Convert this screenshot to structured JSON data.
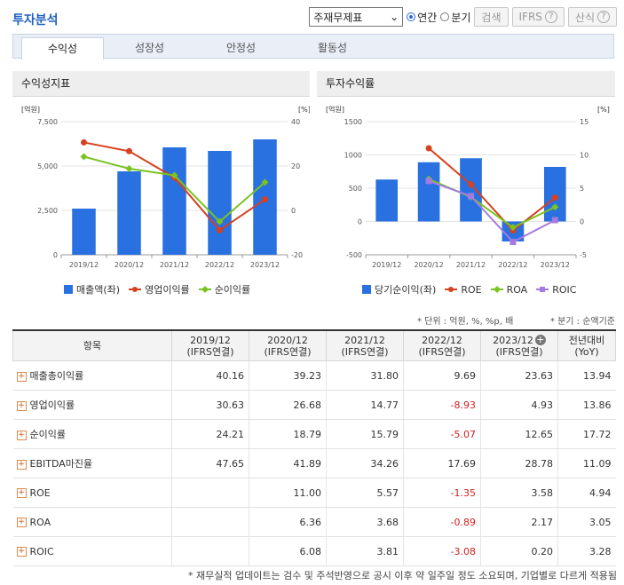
{
  "title": "투자분석",
  "controls": {
    "select_value": "주재무제표",
    "radio_annual": "연간",
    "radio_quarter": "분기",
    "search_button": "검색",
    "ifrs_button": "IFRS",
    "formula_button": "산식"
  },
  "tabs": [
    "수익성",
    "성장성",
    "안정성",
    "활동성"
  ],
  "active_tab": "수익성",
  "left_panel": {
    "title": "수익성지표",
    "unit_left": "[억원]",
    "unit_right": "[%]",
    "y_left_ticks": [
      "7,500",
      "5,000",
      "2,500",
      "0"
    ],
    "y_right_ticks": [
      "40",
      "20",
      "0",
      "-20"
    ],
    "legend": [
      "매출액(좌)",
      "영업이익률",
      "순이익률"
    ]
  },
  "right_panel": {
    "title": "투자수익률",
    "unit_left": "[억원]",
    "unit_right": "[%]",
    "y_left_ticks": [
      "1500",
      "1000",
      "500",
      "0",
      "-500"
    ],
    "y_right_ticks": [
      "15",
      "10",
      "5",
      "0",
      "-5"
    ],
    "legend": [
      "당기순이익(좌)",
      "ROE",
      "ROA",
      "ROIC"
    ]
  },
  "chart_data": [
    {
      "type": "bar",
      "title": "수익성지표",
      "categories": [
        "2019/12",
        "2020/12",
        "2021/12",
        "2022/12",
        "2023/12"
      ],
      "ylim_left": [
        0,
        7500
      ],
      "ylim_right": [
        -20,
        40
      ],
      "series": [
        {
          "name": "매출액(좌)",
          "axis": "left",
          "kind": "bar",
          "color": "#2970e0",
          "values": [
            2600,
            4700,
            6050,
            5850,
            6500
          ]
        },
        {
          "name": "영업이익률",
          "axis": "right",
          "kind": "line",
          "color": "#d6411f",
          "values": [
            30.63,
            26.68,
            14.77,
            -8.93,
            4.93
          ]
        },
        {
          "name": "순이익률",
          "axis": "right",
          "kind": "line",
          "color": "#7ac321",
          "values": [
            24.21,
            18.79,
            15.79,
            -5.07,
            12.65
          ]
        }
      ]
    },
    {
      "type": "bar",
      "title": "투자수익률",
      "categories": [
        "2019/12",
        "2020/12",
        "2021/12",
        "2022/12",
        "2023/12"
      ],
      "ylim_left": [
        -500,
        1500
      ],
      "ylim_right": [
        -5,
        15
      ],
      "series": [
        {
          "name": "당기순이익(좌)",
          "axis": "left",
          "kind": "bar",
          "color": "#2970e0",
          "values": [
            630,
            890,
            950,
            -300,
            820
          ]
        },
        {
          "name": "ROE",
          "axis": "right",
          "kind": "line",
          "color": "#d6411f",
          "values": [
            null,
            11.0,
            5.57,
            -1.35,
            3.58
          ]
        },
        {
          "name": "ROA",
          "axis": "right",
          "kind": "line",
          "color": "#7ac321",
          "values": [
            null,
            6.36,
            3.68,
            -0.89,
            2.17
          ]
        },
        {
          "name": "ROIC",
          "axis": "right",
          "kind": "line",
          "color": "#a57be0",
          "values": [
            null,
            6.08,
            3.81,
            -3.08,
            0.2
          ]
        }
      ]
    }
  ],
  "notes": {
    "units": "* 단위 : 억원, %, %p, 배",
    "quarter": "* 분기 : 순액기준"
  },
  "table": {
    "header_item": "항목",
    "columns": [
      {
        "year": "2019/12",
        "basis": "(IFRS연결)"
      },
      {
        "year": "2020/12",
        "basis": "(IFRS연결)"
      },
      {
        "year": "2021/12",
        "basis": "(IFRS연결)"
      },
      {
        "year": "2022/12",
        "basis": "(IFRS연결)"
      },
      {
        "year": "2023/12",
        "basis": "(IFRS연결)"
      },
      {
        "year": "전년대비",
        "basis": "(YoY)"
      }
    ],
    "rows": [
      {
        "name": "매출총이익률",
        "values": [
          "40.16",
          "39.23",
          "31.80",
          "9.69",
          "23.63",
          "13.94"
        ]
      },
      {
        "name": "영업이익률",
        "values": [
          "30.63",
          "26.68",
          "14.77",
          "-8.93",
          "4.93",
          "13.86"
        ]
      },
      {
        "name": "순이익률",
        "values": [
          "24.21",
          "18.79",
          "15.79",
          "-5.07",
          "12.65",
          "17.72"
        ]
      },
      {
        "name": "EBITDA마진율",
        "values": [
          "47.65",
          "41.89",
          "34.26",
          "17.69",
          "28.78",
          "11.09"
        ]
      },
      {
        "name": "ROE",
        "values": [
          "",
          "11.00",
          "5.57",
          "-1.35",
          "3.58",
          "4.94"
        ]
      },
      {
        "name": "ROA",
        "values": [
          "",
          "6.36",
          "3.68",
          "-0.89",
          "2.17",
          "3.05"
        ]
      },
      {
        "name": "ROIC",
        "values": [
          "",
          "6.08",
          "3.81",
          "-3.08",
          "0.20",
          "3.28"
        ]
      }
    ]
  },
  "footer": "* 재무실적 업데이트는 검수 및 주석반영으로 공시 이후 약 일주일 정도 소요되며, 기업별로 다르게 적용됨"
}
